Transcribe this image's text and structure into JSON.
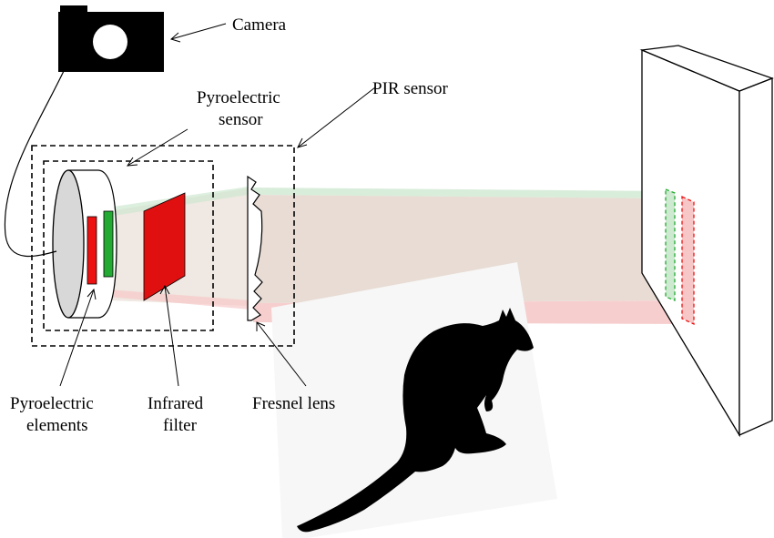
{
  "labels": {
    "camera": "Camera",
    "pir_sensor": "PIR sensor",
    "pyroelectric_sensor_line1": "Pyroelectric",
    "pyroelectric_sensor_line2": "sensor",
    "pyroelectric_elements_line1": "Pyroelectric",
    "pyroelectric_elements_line2": "elements",
    "infrared_filter_line1": "Infrared",
    "infrared_filter_line2": "filter",
    "fresnel_lens": "Fresnel lens"
  },
  "colors": {
    "element_red": "#ee1111",
    "element_green": "#22aa33",
    "filter_red": "#e01010",
    "beam_green": "#cfe8d2",
    "beam_red": "#f6c9c9",
    "beam_overlap": "#e6d8cf",
    "silhouette": "#000000",
    "outline": "#000000"
  },
  "icons": {
    "camera": "camera-icon",
    "animal": "kangaroo-silhouette"
  }
}
